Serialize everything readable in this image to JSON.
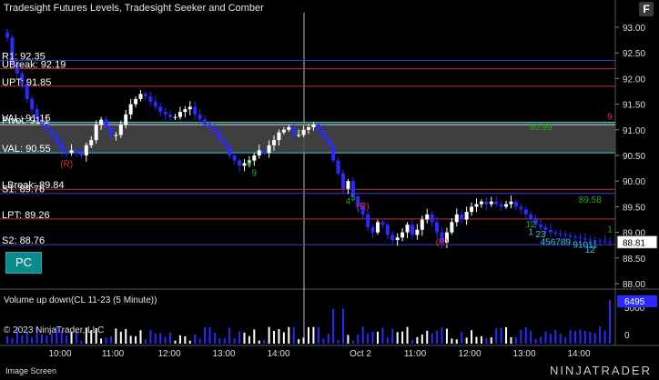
{
  "header": {
    "title": "Tradesight Futures Levels, Tradesight Seeker and Comber",
    "f_button": "F"
  },
  "price_axis": {
    "ticks": [
      "93.00",
      "92.50",
      "92.00",
      "91.50",
      "91.00",
      "90.50",
      "90.00",
      "89.50",
      "89.00",
      "88.50",
      "88.00"
    ],
    "current_price": "88.81"
  },
  "levels": [
    {
      "label": "R1: 92.35",
      "value": 92.35,
      "color": "#3b3bd9"
    },
    {
      "label": "UBreak: 92.19",
      "value": 92.19,
      "color": "#c0303a"
    },
    {
      "label": "UPT: 91.85",
      "value": 91.85,
      "color": "#c0303a"
    },
    {
      "label": "VAL: 91.15",
      "value": 91.15,
      "color": "#2bd0d0"
    },
    {
      "label": "Pivot: 91.1",
      "value": 91.1,
      "color": "#cccccc"
    },
    {
      "label": "VAL: 90.55",
      "value": 90.55,
      "color": "#2bd0d0"
    },
    {
      "label": "LBreak: 89.84",
      "value": 89.84,
      "color": "#c0303a"
    },
    {
      "label": "S1: 89.76",
      "value": 89.76,
      "color": "#3b3bd9"
    },
    {
      "label": "LPT: 89.26",
      "value": 89.26,
      "color": "#c0303a"
    },
    {
      "label": "S2: 88.76",
      "value": 88.76,
      "color": "#3b3bd9"
    }
  ],
  "annotations": [
    {
      "text": "(R)",
      "t": 12,
      "p": 90.28,
      "color": "#e03030"
    },
    {
      "text": "(R)",
      "t": 72,
      "p": 89.45,
      "color": "#e03030"
    },
    {
      "text": "(R)",
      "t": 88,
      "p": 88.75,
      "color": "#e03030"
    },
    {
      "text": "9",
      "t": 50,
      "p": 90.1,
      "color": "#22aa22"
    },
    {
      "text": "8",
      "t": 49,
      "p": 90.3,
      "color": "#22aa22"
    },
    {
      "text": "4",
      "t": 69,
      "p": 89.55,
      "color": "#22aa22"
    },
    {
      "text": "5",
      "t": 70,
      "p": 89.62,
      "color": "#22aa22"
    },
    {
      "text": "1",
      "t": 106,
      "p": 88.95,
      "color": "#22ccff"
    },
    {
      "text": "23",
      "t": 108,
      "p": 88.9,
      "color": "#22ccff"
    },
    {
      "text": "456789",
      "t": 111,
      "p": 88.75,
      "color": "#22ccff"
    },
    {
      "text": "91011",
      "t": 117,
      "p": 88.7,
      "color": "#22ccff"
    },
    {
      "text": "12",
      "t": 118,
      "p": 88.6,
      "color": "#22ccff"
    },
    {
      "text": "12",
      "t": 106,
      "p": 89.1,
      "color": "#22aa22"
    },
    {
      "text": "89.58",
      "t": 118,
      "p": 89.58,
      "color": "#22aa22"
    },
    {
      "text": "90.99",
      "t": 108,
      "p": 91.0,
      "color": "#22aa22"
    },
    {
      "text": "9",
      "t": 122,
      "p": 91.2,
      "color": "#e03030"
    },
    {
      "text": "1",
      "t": 122,
      "p": 89.0,
      "color": "#22aa22"
    }
  ],
  "time_axis": {
    "labels": [
      "10:00",
      "11:00",
      "12:00",
      "13:00",
      "14:00",
      "Oct 2",
      "11:00",
      "12:00",
      "13:00",
      "14:00"
    ]
  },
  "pc_button": "PC",
  "volume_panel": {
    "title": "Volume up down(CL 11-23 (5 Minute))",
    "ticks": [
      "5000",
      "0"
    ],
    "current": "6495"
  },
  "footer": {
    "copyright": "© 2023 NinjaTrader, LLC",
    "image_screen": "Image Screen",
    "logo": "NINJATRADER"
  },
  "chart_data": {
    "type": "candlestick",
    "title": "Tradesight Futures Levels, Tradesight Seeker and Comber",
    "ylim": [
      88.0,
      93.0
    ],
    "closes": [
      92.8,
      92.3,
      92.1,
      91.9,
      91.6,
      91.4,
      91.2,
      91.1,
      91.0,
      90.9,
      90.75,
      90.6,
      90.55,
      90.6,
      90.55,
      90.5,
      90.7,
      90.8,
      91.1,
      91.2,
      91.05,
      90.9,
      90.9,
      91.1,
      91.3,
      91.5,
      91.6,
      91.7,
      91.65,
      91.55,
      91.45,
      91.35,
      91.3,
      91.25,
      91.25,
      91.35,
      91.4,
      91.45,
      91.3,
      91.2,
      91.1,
      91.05,
      90.95,
      90.8,
      90.7,
      90.5,
      90.4,
      90.3,
      90.35,
      90.4,
      90.5,
      90.6,
      90.55,
      90.7,
      90.8,
      90.95,
      91.0,
      91.05,
      90.9,
      90.9,
      91.0,
      91.05,
      91.1,
      91.0,
      90.85,
      90.7,
      90.4,
      90.15,
      89.85,
      90.0,
      89.7,
      89.5,
      89.35,
      89.1,
      89.0,
      89.2,
      89.15,
      88.95,
      88.85,
      88.9,
      89.0,
      89.15,
      88.95,
      89.05,
      89.25,
      89.35,
      89.2,
      89.0,
      88.8,
      89.0,
      89.2,
      89.35,
      89.25,
      89.4,
      89.5,
      89.55,
      89.6,
      89.55,
      89.6,
      89.55,
      89.5,
      89.55,
      89.6,
      89.5,
      89.45,
      89.35,
      89.25,
      89.15,
      89.1,
      89.05,
      89.0,
      88.98,
      88.96,
      88.94,
      88.92,
      88.9,
      88.88,
      88.86,
      88.85,
      88.84,
      88.83,
      88.82,
      88.81
    ],
    "volume_max": 6495
  }
}
